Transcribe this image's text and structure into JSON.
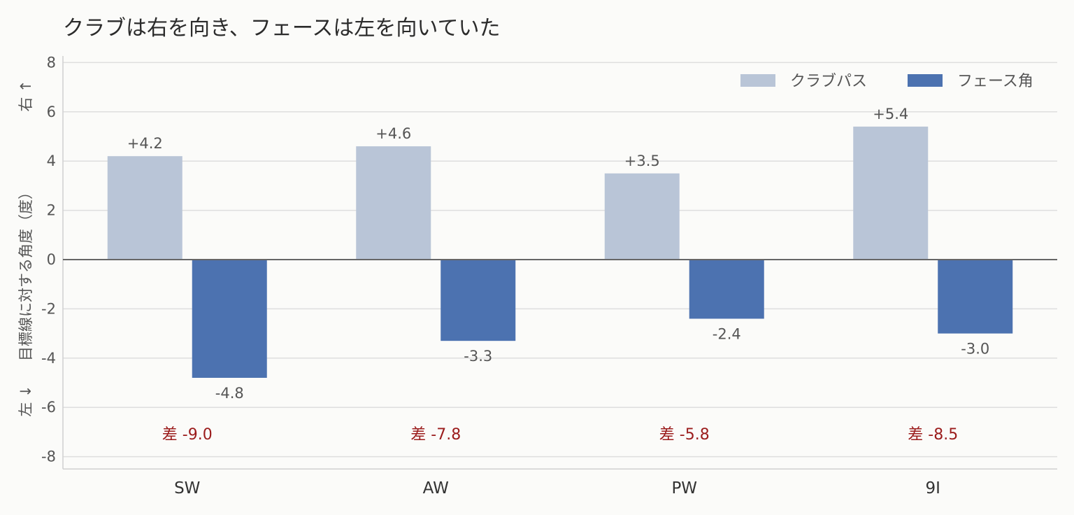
{
  "chart_data": {
    "type": "bar",
    "title": "クラブは右を向き、フェースは左を向いていた",
    "ylabel": "目標線に対する角度（度）",
    "direction_labels": {
      "up": "右 ↑",
      "down": "左 ↓"
    },
    "categories": [
      "SW",
      "AW",
      "PW",
      "9I"
    ],
    "series": [
      {
        "name": "クラブパス",
        "color": "#b9c5d7",
        "values": [
          4.2,
          4.6,
          3.5,
          5.4
        ],
        "labels": [
          "+4.2",
          "+4.6",
          "+3.5",
          "+5.4"
        ]
      },
      {
        "name": "フェース角",
        "color": "#4c72b0",
        "values": [
          -4.8,
          -3.3,
          -2.4,
          -3.0
        ],
        "labels": [
          "-4.8",
          "-3.3",
          "-2.4",
          "-3.0"
        ]
      }
    ],
    "differences": [
      "差 -9.0",
      "差 -7.8",
      "差 -5.8",
      "差 -8.5"
    ],
    "ylim": [
      -8.5,
      8.2
    ],
    "yticks": [
      8,
      6,
      4,
      2,
      0,
      -2,
      -4,
      -6,
      -8
    ],
    "grid": true,
    "legend_position": "top-right"
  }
}
